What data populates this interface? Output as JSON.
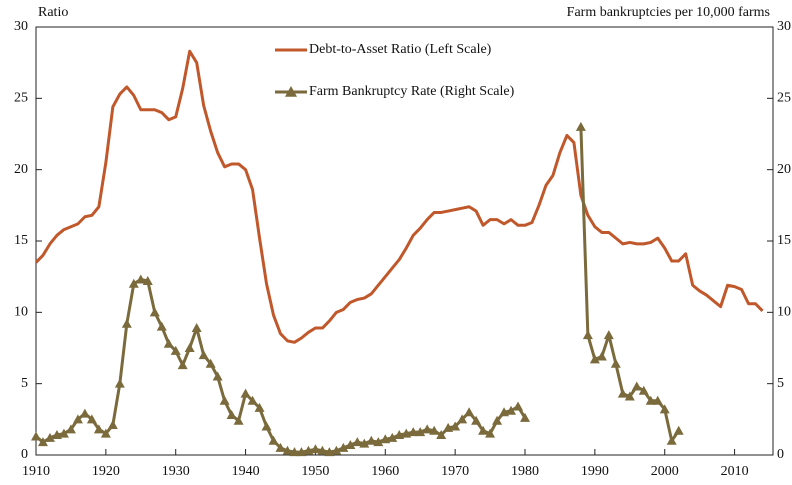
{
  "chart_data": {
    "type": "line",
    "y_label": "Ratio",
    "y2_label": "Farm bankruptcies per 10,000 farms",
    "x": [
      1910,
      1911,
      1912,
      1913,
      1914,
      1915,
      1916,
      1917,
      1918,
      1919,
      1920,
      1921,
      1922,
      1923,
      1924,
      1925,
      1926,
      1927,
      1928,
      1929,
      1930,
      1931,
      1932,
      1933,
      1934,
      1935,
      1936,
      1937,
      1938,
      1939,
      1940,
      1941,
      1942,
      1943,
      1944,
      1945,
      1946,
      1947,
      1948,
      1949,
      1950,
      1951,
      1952,
      1953,
      1954,
      1955,
      1956,
      1957,
      1958,
      1959,
      1960,
      1961,
      1962,
      1963,
      1964,
      1965,
      1966,
      1967,
      1968,
      1969,
      1970,
      1971,
      1972,
      1973,
      1974,
      1975,
      1976,
      1977,
      1978,
      1979,
      1980,
      1981,
      1982,
      1983,
      1984,
      1985,
      1986,
      1987,
      1988,
      1989,
      1990,
      1991,
      1992,
      1993,
      1994,
      1995,
      1996,
      1997,
      1998,
      1999,
      2000,
      2001,
      2002,
      2003,
      2004,
      2005,
      2006,
      2007,
      2008,
      2009,
      2010,
      2011,
      2012,
      2013,
      2014
    ],
    "series": [
      {
        "name": "Debt-to-Asset Ratio (Left Scale)",
        "color": "#c0582c",
        "marker": "none",
        "axis": "y",
        "values": [
          13.5,
          14.0,
          14.8,
          15.4,
          15.8,
          16.0,
          16.2,
          16.7,
          16.8,
          17.4,
          20.5,
          24.4,
          25.3,
          25.8,
          25.2,
          24.2,
          24.2,
          24.2,
          24.0,
          23.5,
          23.7,
          25.7,
          28.3,
          27.5,
          24.5,
          22.7,
          21.2,
          20.2,
          20.4,
          20.4,
          20.0,
          18.6,
          15.2,
          12.0,
          9.8,
          8.5,
          8.0,
          7.9,
          8.2,
          8.6,
          8.9,
          8.9,
          9.4,
          10.0,
          10.2,
          10.7,
          10.9,
          11.0,
          11.3,
          11.9,
          12.5,
          13.1,
          13.7,
          14.5,
          15.4,
          15.9,
          16.5,
          17.0,
          17.0,
          17.1,
          17.2,
          17.3,
          17.4,
          17.1,
          16.1,
          16.5,
          16.5,
          16.2,
          16.5,
          16.1,
          16.1,
          16.3,
          17.5,
          18.9,
          19.6,
          21.2,
          22.4,
          21.9,
          18.2,
          16.8,
          16.0,
          15.6,
          15.6,
          15.2,
          14.8,
          14.9,
          14.8,
          14.8,
          14.9,
          15.2,
          14.5,
          13.6,
          13.6,
          14.1,
          11.9,
          11.5,
          11.2,
          10.8,
          10.4,
          11.9,
          11.8,
          11.6,
          10.6,
          10.6,
          10.1
        ]
      },
      {
        "name": "Farm Bankruptcy Rate (Right Scale)",
        "color": "#7a6a3c",
        "marker": "triangle",
        "axis": "y2",
        "values": [
          1.3,
          0.9,
          1.2,
          1.4,
          1.5,
          1.8,
          2.5,
          2.9,
          2.5,
          1.8,
          1.5,
          2.1,
          5.0,
          9.2,
          12.0,
          12.3,
          12.2,
          10.0,
          9.0,
          7.8,
          7.3,
          6.3,
          7.5,
          8.9,
          7.0,
          6.4,
          5.5,
          3.8,
          2.8,
          2.4,
          4.3,
          3.8,
          3.3,
          2.0,
          1.0,
          0.5,
          0.3,
          0.2,
          0.2,
          0.3,
          0.4,
          0.3,
          0.2,
          0.3,
          0.5,
          0.7,
          0.9,
          0.8,
          1.0,
          0.9,
          1.1,
          1.2,
          1.4,
          1.5,
          1.6,
          1.6,
          1.8,
          1.7,
          1.4,
          1.9,
          2.0,
          2.5,
          3.0,
          2.4,
          1.7,
          1.5,
          2.4,
          3.0,
          3.1,
          3.4,
          2.6,
          null,
          null,
          null,
          null,
          null,
          null,
          null,
          23.0,
          8.4,
          6.7,
          6.9,
          8.4,
          6.4,
          4.3,
          4.1,
          4.8,
          4.5,
          3.8,
          3.8,
          3.2,
          1.0,
          1.7,
          null,
          null,
          null,
          null,
          null,
          null,
          null,
          null,
          null,
          null,
          null,
          null
        ]
      }
    ],
    "xlim": [
      1910,
      2015.5
    ],
    "xticks": [
      1910,
      1920,
      1930,
      1940,
      1950,
      1960,
      1970,
      1980,
      1990,
      2000,
      2010
    ],
    "ylim": [
      0,
      30
    ],
    "yticks": [
      0,
      5,
      10,
      15,
      20,
      25,
      30
    ],
    "y2lim": [
      0,
      30
    ],
    "y2ticks": [
      0,
      5,
      10,
      15,
      20,
      25,
      30
    ],
    "legend": "top-center",
    "grid": false
  }
}
